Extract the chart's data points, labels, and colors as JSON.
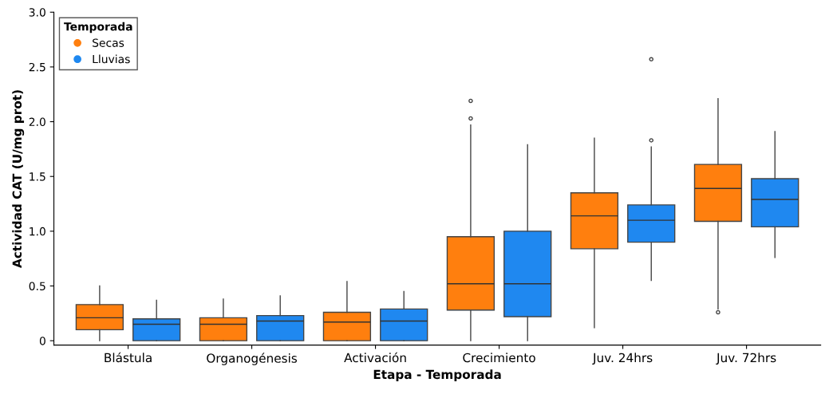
{
  "chart_data": {
    "type": "box",
    "xlabel": "Etapa - Temporada",
    "ylabel": "Actividad CAT (U/mg prot)",
    "legend_title": "Temporada",
    "legend": "top left",
    "grid": false,
    "categories": [
      "Blástula",
      "Organogénesis",
      "Activación",
      "Crecimiento",
      "Juv. 24hrs",
      "Juv. 72hrs"
    ],
    "ylim": [
      -0.04,
      3.0
    ],
    "yticks": [
      0,
      0.5,
      {
        "value": 1,
        "label": "1.0"
      },
      1.5,
      {
        "value": 2,
        "label": "2.0"
      },
      2.5,
      {
        "value": 3,
        "label": "3.0"
      }
    ],
    "series": [
      {
        "name": "Secas",
        "color": "#ff7f0e",
        "boxes": [
          {
            "low": 0,
            "q1": 0.1,
            "median": 0.21,
            "q3": 0.33,
            "high": 0.5
          },
          {
            "low": 0,
            "q1": 0,
            "median": 0.15,
            "q3": 0.21,
            "high": 0.38
          },
          {
            "low": 0,
            "q1": 0,
            "median": 0.17,
            "q3": 0.26,
            "high": 0.54
          },
          {
            "low": 0,
            "q1": 0.28,
            "median": 0.52,
            "q3": 0.95,
            "high": 1.97,
            "outliers": [
              2.03,
              2.19
            ]
          },
          {
            "low": 0.12,
            "q1": 0.84,
            "median": 1.14,
            "q3": 1.35,
            "high": 1.85
          },
          {
            "low": 0.29,
            "q1": 1.09,
            "median": 1.39,
            "q3": 1.61,
            "high": 2.21,
            "outliers": [
              0.26
            ]
          }
        ]
      },
      {
        "name": "Lluvias",
        "color": "#1f88f0",
        "boxes": [
          {
            "low": 0,
            "q1": 0,
            "median": 0.15,
            "q3": 0.2,
            "high": 0.37
          },
          {
            "low": 0,
            "q1": 0,
            "median": 0.18,
            "q3": 0.23,
            "high": 0.41
          },
          {
            "low": 0,
            "q1": 0,
            "median": 0.18,
            "q3": 0.29,
            "high": 0.45
          },
          {
            "low": 0,
            "q1": 0.22,
            "median": 0.52,
            "q3": 1.0,
            "high": 1.79
          },
          {
            "low": 0.55,
            "q1": 0.9,
            "median": 1.1,
            "q3": 1.24,
            "high": 1.77,
            "outliers": [
              1.83,
              2.57
            ]
          },
          {
            "low": 0.76,
            "q1": 1.04,
            "median": 1.29,
            "q3": 1.48,
            "high": 1.91
          }
        ]
      }
    ]
  }
}
